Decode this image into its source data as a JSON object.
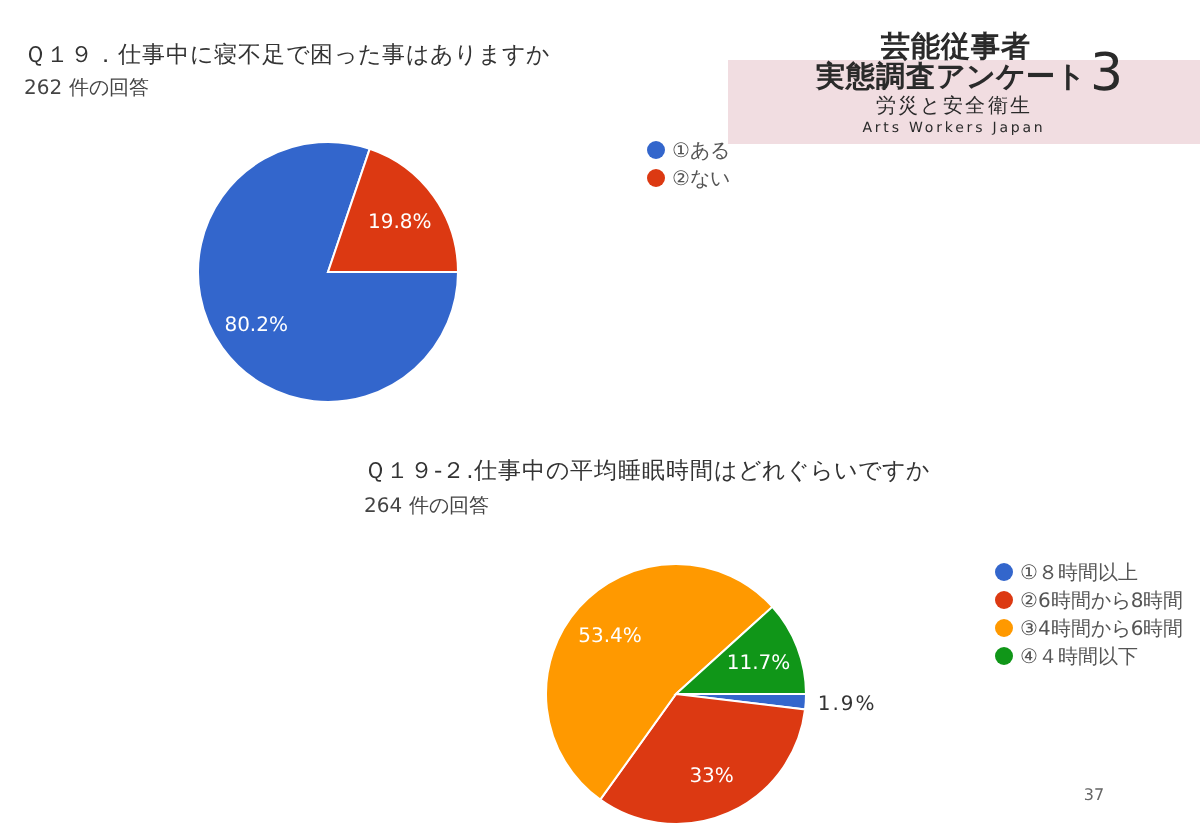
{
  "chart_data": [
    {
      "type": "pie",
      "title": "Ｑ１９．仕事中に寝不足で困った事はありますか",
      "subtitle": "262 件の回答",
      "categories": [
        "①ある",
        "②ない"
      ],
      "values": [
        80.2,
        19.8
      ],
      "colors": [
        "#3366cc",
        "#dc3912"
      ],
      "value_labels": [
        "80.2%",
        "19.8%"
      ],
      "legend": "right"
    },
    {
      "type": "other",
      "title": "芸能従事者",
      "subtitle": "実態調査アンケート",
      "annotations": [
        "3",
        "労災と安全衛生",
        "Arts Workers Japan"
      ]
    },
    {
      "type": "pie",
      "title": "Ｑ１９-２.仕事中の平均睡眠時間はどれぐらいですか",
      "subtitle": "264 件の回答",
      "categories": [
        "①８時間以上",
        "②6時間から8時間",
        "③4時間から6時間",
        "④４時間以下"
      ],
      "values": [
        1.9,
        33,
        53.4,
        11.7
      ],
      "colors": [
        "#3366cc",
        "#dc3912",
        "#ff9900",
        "#109618"
      ],
      "value_labels": [
        "1.9%",
        "33%",
        "53.4%",
        "11.7%"
      ],
      "legend": "right",
      "annotations": [
        "37"
      ]
    }
  ]
}
